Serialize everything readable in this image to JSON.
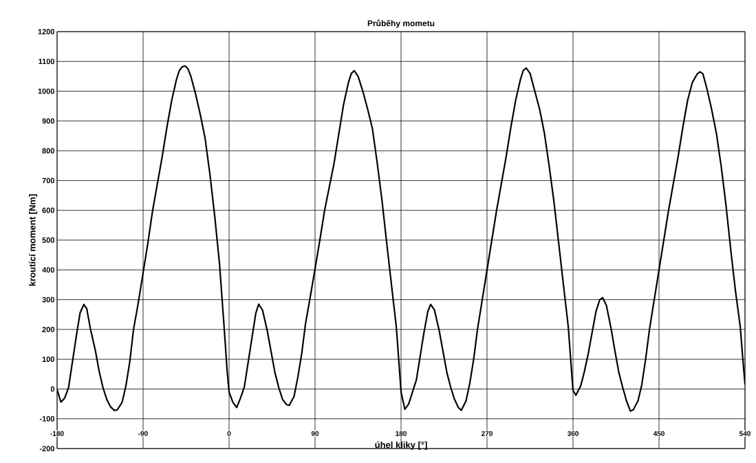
{
  "chart_data": {
    "type": "line",
    "title": "Průběhy mometu",
    "xlabel": "úhel kliky [°]",
    "ylabel": "kroutící moment [Nm]",
    "xlim": [
      -180,
      540
    ],
    "ylim": [
      -200,
      1200
    ],
    "xticks": [
      -180,
      -90,
      0,
      90,
      180,
      270,
      360,
      450,
      540
    ],
    "yticks": [
      -200,
      -100,
      0,
      100,
      200,
      300,
      400,
      500,
      600,
      700,
      800,
      900,
      1000,
      1100,
      1200
    ],
    "grid": true,
    "marker": "none",
    "line_style": "solid",
    "series": [
      {
        "color": "#000000",
        "x": [
          -180,
          -176,
          -172,
          -168,
          -164,
          -160,
          -156,
          -152,
          -149,
          -145,
          -140,
          -136,
          -132,
          -128,
          -124,
          -120,
          -117,
          -112,
          -108,
          -104,
          -100,
          -95,
          -90,
          -85,
          -80,
          -75,
          -70,
          -65,
          -60,
          -55,
          -52,
          -49,
          -46,
          -43,
          -40,
          -35,
          -30,
          -25,
          -20,
          -15,
          -10,
          -5,
          -2,
          0,
          4,
          8,
          12,
          16,
          20,
          24,
          28,
          31,
          35,
          40,
          44,
          48,
          52,
          56,
          60,
          63,
          68,
          72,
          76,
          80,
          85,
          90,
          95,
          100,
          105,
          110,
          115,
          120,
          125,
          128,
          131,
          135,
          140,
          145,
          150,
          155,
          160,
          165,
          170,
          175,
          178,
          180,
          184,
          188,
          192,
          196,
          200,
          204,
          208,
          211,
          215,
          220,
          224,
          228,
          232,
          236,
          240,
          243,
          248,
          252,
          256,
          260,
          265,
          270,
          275,
          280,
          285,
          290,
          295,
          300,
          305,
          308,
          311,
          315,
          320,
          325,
          330,
          335,
          340,
          345,
          350,
          355,
          358,
          360,
          363,
          368,
          372,
          376,
          380,
          384,
          388,
          391,
          395,
          400,
          404,
          408,
          412,
          416,
          420,
          423,
          428,
          432,
          436,
          440,
          445,
          450,
          455,
          460,
          465,
          470,
          475,
          480,
          485,
          490,
          493,
          496,
          500,
          505,
          510,
          515,
          520,
          525,
          530,
          535,
          538,
          540
        ],
        "values": [
          -2,
          -44,
          -30,
          5,
          90,
          175,
          255,
          284,
          270,
          200,
          130,
          60,
          5,
          -35,
          -60,
          -72,
          -70,
          -45,
          10,
          90,
          200,
          290,
          390,
          490,
          600,
          690,
          780,
          880,
          970,
          1040,
          1070,
          1082,
          1085,
          1075,
          1050,
          990,
          920,
          840,
          720,
          580,
          420,
          200,
          60,
          -10,
          -45,
          -62,
          -30,
          7,
          90,
          173,
          255,
          285,
          265,
          195,
          125,
          55,
          5,
          -35,
          -52,
          -55,
          -25,
          40,
          118,
          219,
          310,
          404,
          500,
          600,
          680,
          760,
          860,
          958,
          1030,
          1060,
          1069,
          1050,
          1000,
          940,
          875,
          760,
          635,
          490,
          349,
          210,
          80,
          -10,
          -68,
          -50,
          -10,
          30,
          110,
          190,
          260,
          284,
          265,
          195,
          125,
          55,
          5,
          -35,
          -62,
          -72,
          -40,
          20,
          100,
          200,
          300,
          400,
          500,
          600,
          690,
          780,
          880,
          970,
          1040,
          1070,
          1078,
          1060,
          1000,
          940,
          860,
          750,
          630,
          490,
          349,
          210,
          80,
          -5,
          -21,
          10,
          60,
          120,
          190,
          260,
          300,
          307,
          280,
          200,
          125,
          55,
          5,
          -40,
          -74,
          -70,
          -40,
          15,
          100,
          200,
          300,
          400,
          500,
          600,
          690,
          780,
          880,
          970,
          1030,
          1058,
          1065,
          1058,
          1010,
          940,
          860,
          750,
          620,
          470,
          330,
          210,
          90,
          16
        ]
      }
    ]
  }
}
